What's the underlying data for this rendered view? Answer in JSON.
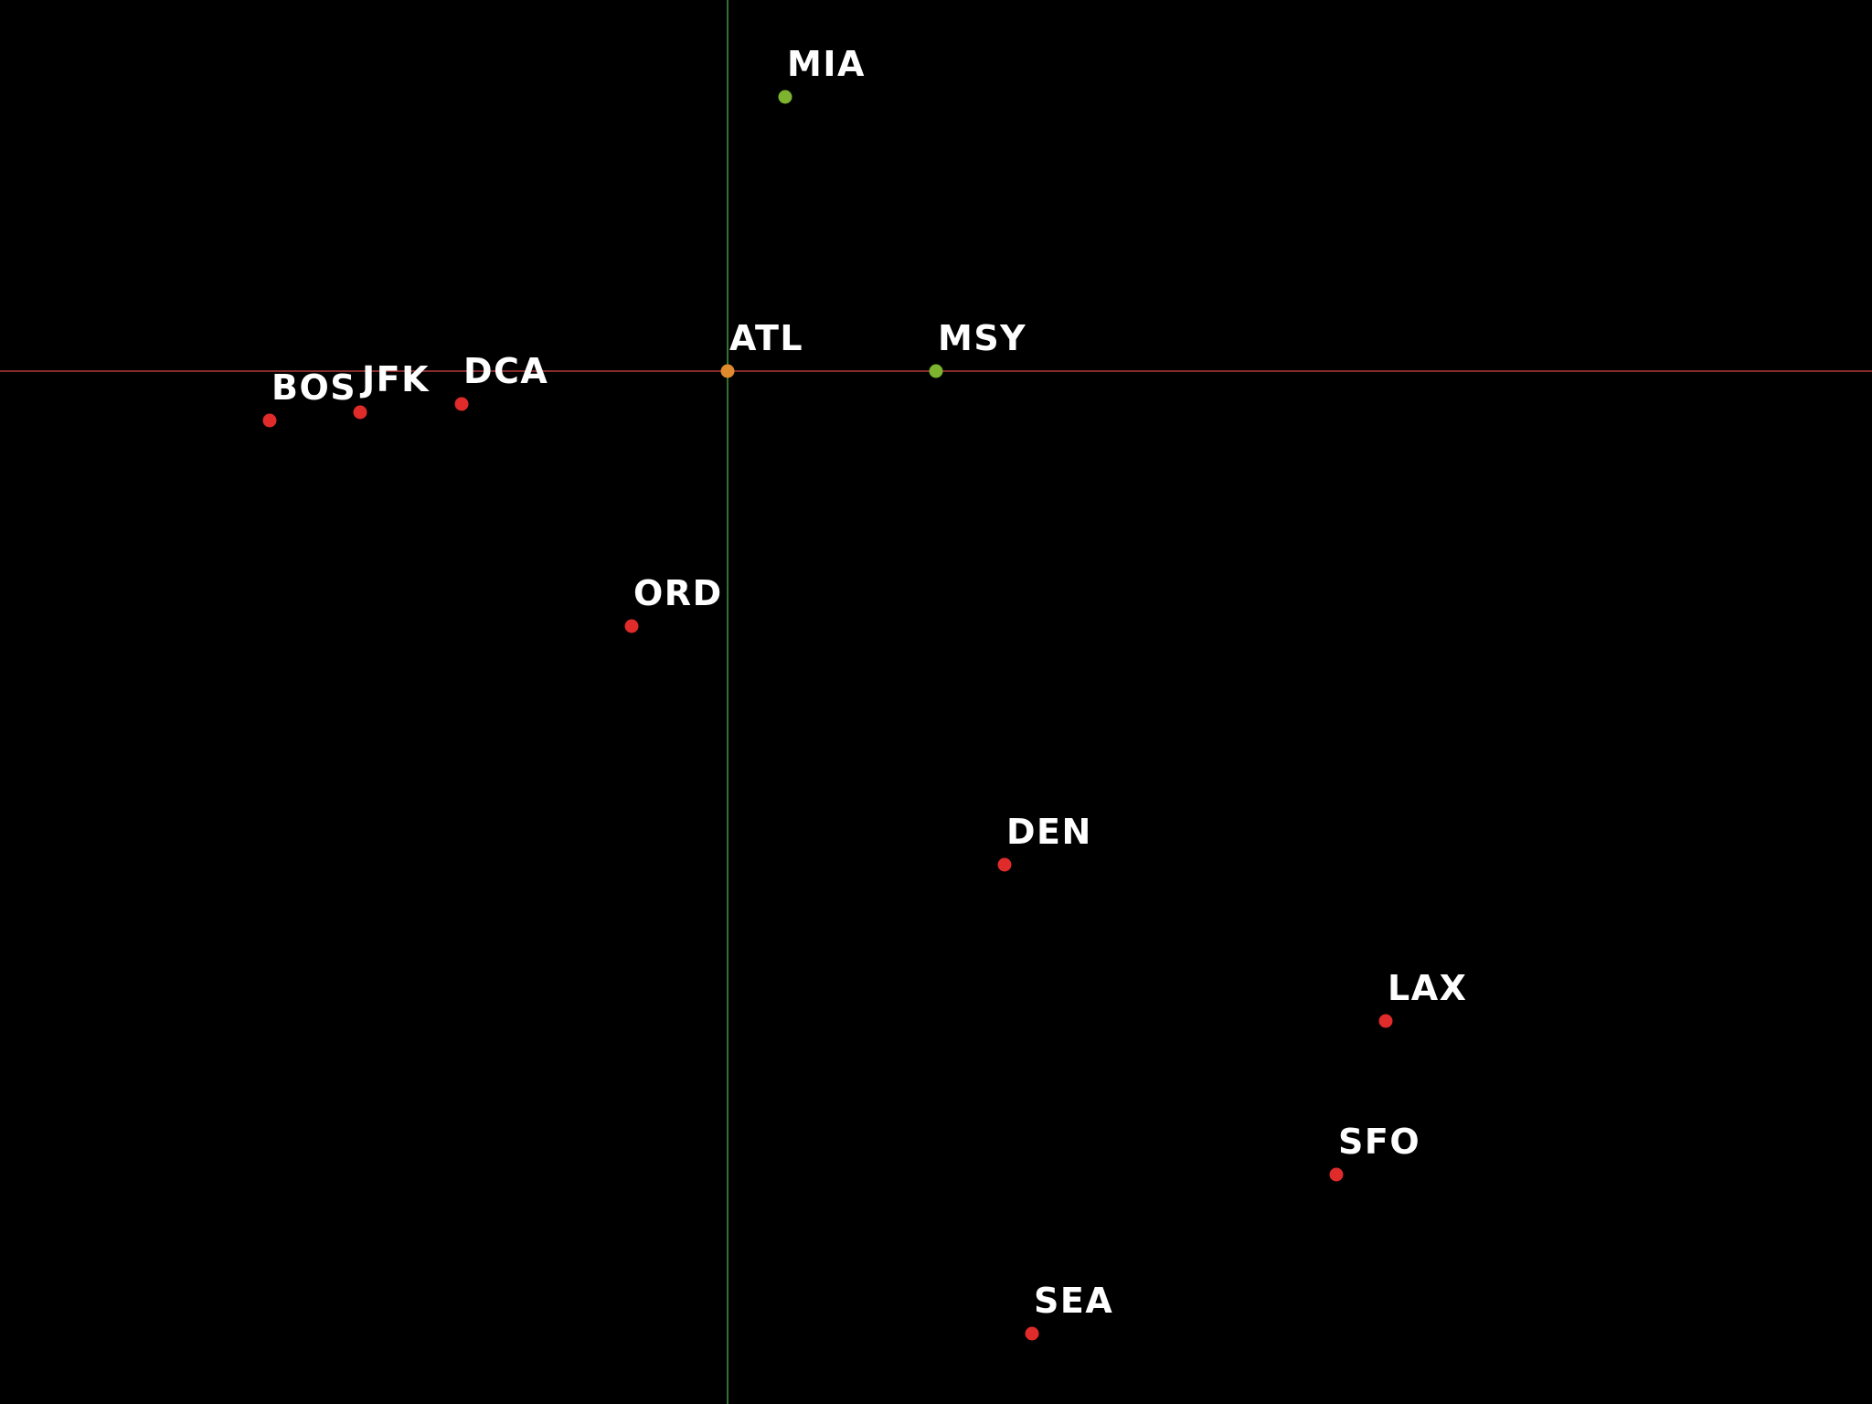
{
  "colors": {
    "background": "#000000",
    "label": "#ffffff",
    "horizontal_axis": "#b23a3a",
    "vertical_axis": "#3d9a3d",
    "origin": "#e08a2e",
    "north": "#7db32f",
    "south": "#e02b2b"
  },
  "nodes": [
    {
      "code": "ATL",
      "group": "origin",
      "x": 0.0,
      "y": 0.0
    },
    {
      "code": "MIA",
      "group": "north",
      "x": 0.21,
      "y": 1.0
    },
    {
      "code": "MSY",
      "group": "north",
      "x": 0.76,
      "y": 0.0
    },
    {
      "code": "BOS",
      "group": "south",
      "x": -1.67,
      "y": -0.18
    },
    {
      "code": "JFK",
      "group": "south",
      "x": -1.34,
      "y": -0.15
    },
    {
      "code": "DCA",
      "group": "south",
      "x": -0.97,
      "y": -0.12
    },
    {
      "code": "ORD",
      "group": "south",
      "x": -0.35,
      "y": -0.93
    },
    {
      "code": "DEN",
      "group": "south",
      "x": 1.01,
      "y": -1.8
    },
    {
      "code": "LAX",
      "group": "south",
      "x": 2.4,
      "y": -2.37
    },
    {
      "code": "SFO",
      "group": "south",
      "x": 2.22,
      "y": -2.93
    },
    {
      "code": "SEA",
      "group": "south",
      "x": 1.11,
      "y": -3.51
    }
  ]
}
